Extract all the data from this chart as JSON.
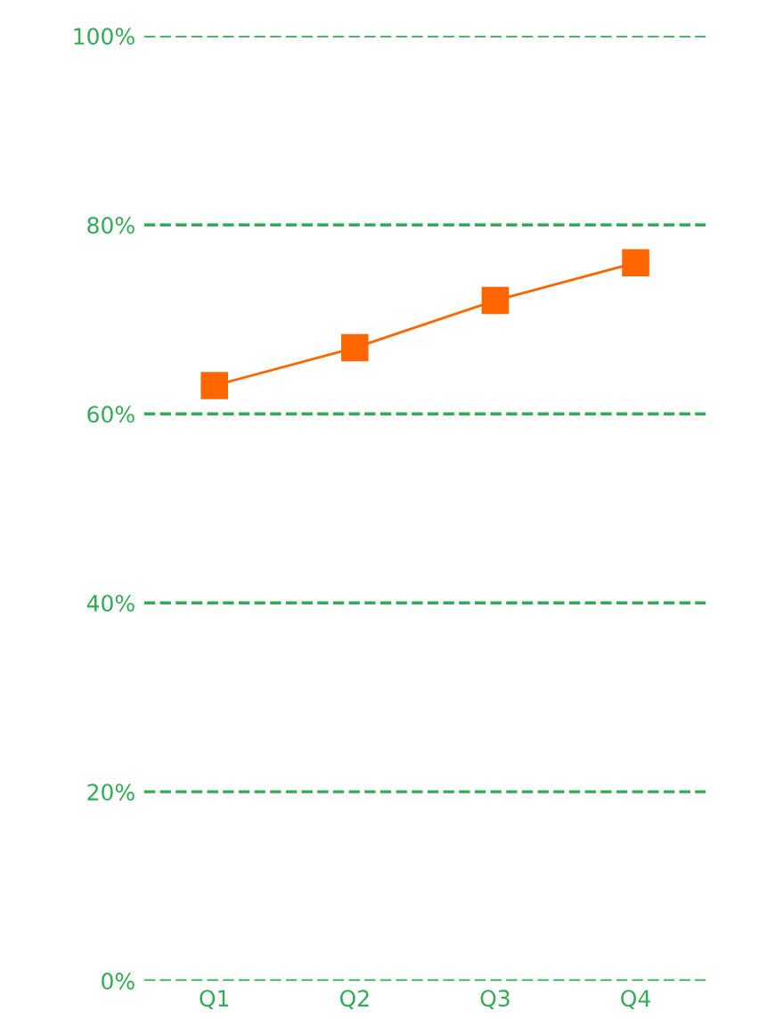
{
  "chart_data": {
    "type": "line",
    "categories": [
      "Q1",
      "Q2",
      "Q3",
      "Q4"
    ],
    "series": [
      {
        "color": "#ff6600",
        "values": [
          63,
          67,
          72,
          76
        ]
      }
    ],
    "ylim": [
      0,
      100
    ],
    "yticks": [
      {
        "value": 0,
        "label": "0%"
      },
      {
        "value": 20,
        "label": "20%"
      },
      {
        "value": 40,
        "label": "40%"
      },
      {
        "value": 60,
        "label": "60%"
      },
      {
        "value": 80,
        "label": "80%"
      },
      {
        "value": 100,
        "label": "100%"
      }
    ],
    "grid": "y",
    "marker": "square",
    "line_style": "solid"
  }
}
